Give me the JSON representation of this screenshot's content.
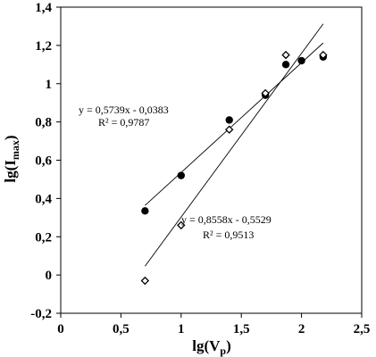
{
  "chart_data": {
    "type": "scatter",
    "xlim": [
      0,
      2.5
    ],
    "ylim": [
      -0.2,
      1.4
    ],
    "x_ticks": [
      {
        "value": 0,
        "label": "0"
      },
      {
        "value": 0.5,
        "label": "0,5"
      },
      {
        "value": 1,
        "label": "1"
      },
      {
        "value": 1.5,
        "label": "1,5"
      },
      {
        "value": 2,
        "label": "2"
      },
      {
        "value": 2.5,
        "label": "2,5"
      }
    ],
    "y_ticks": [
      {
        "value": -0.2,
        "label": "-0,2"
      },
      {
        "value": 0,
        "label": "0"
      },
      {
        "value": 0.2,
        "label": "0,2"
      },
      {
        "value": 0.4,
        "label": "0,4"
      },
      {
        "value": 0.6,
        "label": "0,6"
      },
      {
        "value": 0.8,
        "label": "0,8"
      },
      {
        "value": 1,
        "label": "1"
      },
      {
        "value": 1.2,
        "label": "1,2"
      },
      {
        "value": 1.4,
        "label": "1,4"
      }
    ],
    "xlabel": {
      "base": "lg(V",
      "sub": "p",
      "close": ")"
    },
    "ylabel": {
      "base": "lg(I",
      "sub": "max",
      "close": ")"
    },
    "grid": false,
    "series": [
      {
        "marker": "filled-circle",
        "x": [
          0.7,
          1.0,
          1.4,
          1.7,
          1.87,
          2.0,
          2.18
        ],
        "y": [
          0.335,
          0.52,
          0.81,
          0.94,
          1.1,
          1.12,
          1.14
        ],
        "trendline": {
          "slope": 0.5739,
          "intercept": -0.0383,
          "x_range": [
            0.7,
            2.18
          ]
        },
        "equation": "y = 0,5739x - 0,0383",
        "r2": "R² = 0,9787"
      },
      {
        "marker": "open-diamond",
        "x": [
          0.7,
          1.0,
          1.4,
          1.7,
          1.87,
          2.18
        ],
        "y": [
          -0.03,
          0.26,
          0.76,
          0.95,
          1.15,
          1.15
        ],
        "trendline": {
          "slope": 0.8558,
          "intercept": -0.5529,
          "x_range": [
            0.7,
            2.18
          ]
        },
        "equation": "y = 0,8558x - 0,5529",
        "r2": "R² = 0,9513"
      }
    ]
  }
}
